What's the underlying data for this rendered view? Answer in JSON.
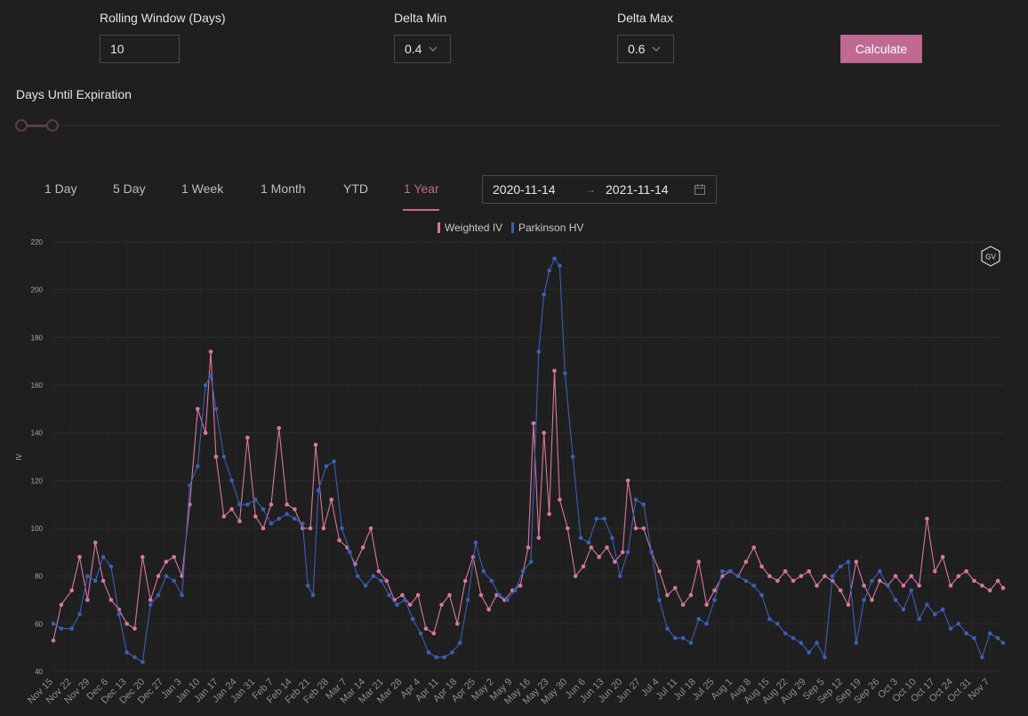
{
  "controls": {
    "rolling_window_label": "Rolling Window (Days)",
    "rolling_window_value": "10",
    "delta_min_label": "Delta Min",
    "delta_min_value": "0.4",
    "delta_max_label": "Delta Max",
    "delta_max_value": "0.6",
    "calculate_label": "Calculate",
    "days_until_expiration_label": "Days Until Expiration"
  },
  "tabs": [
    {
      "label": "1 Day",
      "active": false
    },
    {
      "label": "5 Day",
      "active": false
    },
    {
      "label": "1 Week",
      "active": false
    },
    {
      "label": "1 Month",
      "active": false
    },
    {
      "label": "YTD",
      "active": false
    },
    {
      "label": "1 Year",
      "active": true
    }
  ],
  "date_range": {
    "start": "2020-11-14",
    "end": "2021-11-14"
  },
  "logo_text": "GV",
  "colors": {
    "accent": "#c06a92",
    "weighted_iv": "#d9779f",
    "parkinson_hv": "#3b5fb5",
    "background": "#1f1f1f"
  },
  "chart_data": {
    "type": "line",
    "ylabel": "IV",
    "xlabel": "",
    "ylim": [
      40,
      220
    ],
    "y_ticks": [
      40,
      60,
      80,
      100,
      120,
      140,
      160,
      180,
      200,
      220
    ],
    "grid": true,
    "legend_position": "top-center",
    "x_start": "2020-11-15",
    "x_end": "2021-11-12",
    "x_tick_labels": [
      "Nov 15",
      "Nov 22",
      "Nov 29",
      "Dec 6",
      "Dec 13",
      "Dec 20",
      "Dec 27",
      "Jan 3",
      "Jan 10",
      "Jan 17",
      "Jan 24",
      "Jan 31",
      "Feb 7",
      "Feb 14",
      "Feb 21",
      "Feb 28",
      "Mar 7",
      "Mar 14",
      "Mar 21",
      "Mar 28",
      "Apr 4",
      "Apr 11",
      "Apr 18",
      "Apr 25",
      "May 2",
      "May 9",
      "May 16",
      "May 23",
      "May 30",
      "Jun 6",
      "Jun 13",
      "Jun 20",
      "Jun 27",
      "Jul 4",
      "Jul 11",
      "Jul 18",
      "Jul 25",
      "Aug 1",
      "Aug 8",
      "Aug 15",
      "Aug 22",
      "Aug 29",
      "Sep 5",
      "Sep 12",
      "Sep 19",
      "Sep 26",
      "Oct 3",
      "Oct 10",
      "Oct 17",
      "Oct 24",
      "Oct 31",
      "Nov 7"
    ],
    "series": [
      {
        "name": "Weighted IV",
        "color": "#d9779f",
        "points": [
          [
            "2020-11-15",
            53
          ],
          [
            "2020-11-18",
            68
          ],
          [
            "2020-11-22",
            74
          ],
          [
            "2020-11-25",
            88
          ],
          [
            "2020-11-28",
            70
          ],
          [
            "2020-12-01",
            94
          ],
          [
            "2020-12-04",
            78
          ],
          [
            "2020-12-07",
            70
          ],
          [
            "2020-12-10",
            66
          ],
          [
            "2020-12-13",
            60
          ],
          [
            "2020-12-16",
            58
          ],
          [
            "2020-12-19",
            88
          ],
          [
            "2020-12-22",
            70
          ],
          [
            "2020-12-25",
            80
          ],
          [
            "2020-12-28",
            86
          ],
          [
            "2020-12-31",
            88
          ],
          [
            "2021-01-03",
            80
          ],
          [
            "2021-01-06",
            110
          ],
          [
            "2021-01-09",
            150
          ],
          [
            "2021-01-12",
            140
          ],
          [
            "2021-01-14",
            174
          ],
          [
            "2021-01-16",
            130
          ],
          [
            "2021-01-19",
            105
          ],
          [
            "2021-01-22",
            108
          ],
          [
            "2021-01-25",
            103
          ],
          [
            "2021-01-28",
            138
          ],
          [
            "2021-01-31",
            105
          ],
          [
            "2021-02-03",
            100
          ],
          [
            "2021-02-06",
            110
          ],
          [
            "2021-02-09",
            142
          ],
          [
            "2021-02-12",
            110
          ],
          [
            "2021-02-15",
            108
          ],
          [
            "2021-02-18",
            100
          ],
          [
            "2021-02-21",
            100
          ],
          [
            "2021-02-23",
            135
          ],
          [
            "2021-02-26",
            100
          ],
          [
            "2021-03-01",
            112
          ],
          [
            "2021-03-04",
            95
          ],
          [
            "2021-03-07",
            92
          ],
          [
            "2021-03-10",
            85
          ],
          [
            "2021-03-13",
            92
          ],
          [
            "2021-03-16",
            100
          ],
          [
            "2021-03-19",
            82
          ],
          [
            "2021-03-22",
            78
          ],
          [
            "2021-03-25",
            70
          ],
          [
            "2021-03-28",
            72
          ],
          [
            "2021-03-31",
            68
          ],
          [
            "2021-04-03",
            72
          ],
          [
            "2021-04-06",
            58
          ],
          [
            "2021-04-09",
            56
          ],
          [
            "2021-04-12",
            68
          ],
          [
            "2021-04-15",
            72
          ],
          [
            "2021-04-18",
            60
          ],
          [
            "2021-04-21",
            78
          ],
          [
            "2021-04-24",
            88
          ],
          [
            "2021-04-27",
            72
          ],
          [
            "2021-04-30",
            66
          ],
          [
            "2021-05-03",
            72
          ],
          [
            "2021-05-06",
            70
          ],
          [
            "2021-05-09",
            74
          ],
          [
            "2021-05-12",
            76
          ],
          [
            "2021-05-15",
            92
          ],
          [
            "2021-05-17",
            144
          ],
          [
            "2021-05-19",
            96
          ],
          [
            "2021-05-21",
            140
          ],
          [
            "2021-05-23",
            106
          ],
          [
            "2021-05-25",
            166
          ],
          [
            "2021-05-27",
            112
          ],
          [
            "2021-05-30",
            100
          ],
          [
            "2021-06-02",
            80
          ],
          [
            "2021-06-05",
            84
          ],
          [
            "2021-06-08",
            92
          ],
          [
            "2021-06-11",
            88
          ],
          [
            "2021-06-14",
            92
          ],
          [
            "2021-06-17",
            86
          ],
          [
            "2021-06-20",
            90
          ],
          [
            "2021-06-22",
            120
          ],
          [
            "2021-06-25",
            100
          ],
          [
            "2021-06-28",
            100
          ],
          [
            "2021-07-01",
            90
          ],
          [
            "2021-07-04",
            82
          ],
          [
            "2021-07-07",
            72
          ],
          [
            "2021-07-10",
            75
          ],
          [
            "2021-07-13",
            68
          ],
          [
            "2021-07-16",
            72
          ],
          [
            "2021-07-19",
            86
          ],
          [
            "2021-07-22",
            68
          ],
          [
            "2021-07-25",
            74
          ],
          [
            "2021-07-28",
            80
          ],
          [
            "2021-07-31",
            82
          ],
          [
            "2021-08-03",
            80
          ],
          [
            "2021-08-06",
            86
          ],
          [
            "2021-08-09",
            92
          ],
          [
            "2021-08-12",
            84
          ],
          [
            "2021-08-15",
            80
          ],
          [
            "2021-08-18",
            78
          ],
          [
            "2021-08-21",
            82
          ],
          [
            "2021-08-24",
            78
          ],
          [
            "2021-08-27",
            80
          ],
          [
            "2021-08-30",
            82
          ],
          [
            "2021-09-02",
            76
          ],
          [
            "2021-09-05",
            80
          ],
          [
            "2021-09-08",
            78
          ],
          [
            "2021-09-11",
            74
          ],
          [
            "2021-09-14",
            68
          ],
          [
            "2021-09-17",
            86
          ],
          [
            "2021-09-20",
            76
          ],
          [
            "2021-09-23",
            70
          ],
          [
            "2021-09-26",
            78
          ],
          [
            "2021-09-29",
            76
          ],
          [
            "2021-10-02",
            80
          ],
          [
            "2021-10-05",
            76
          ],
          [
            "2021-10-08",
            80
          ],
          [
            "2021-10-11",
            76
          ],
          [
            "2021-10-14",
            104
          ],
          [
            "2021-10-17",
            82
          ],
          [
            "2021-10-20",
            88
          ],
          [
            "2021-10-23",
            76
          ],
          [
            "2021-10-26",
            80
          ],
          [
            "2021-10-29",
            82
          ],
          [
            "2021-11-01",
            78
          ],
          [
            "2021-11-04",
            76
          ],
          [
            "2021-11-07",
            74
          ],
          [
            "2021-11-10",
            78
          ],
          [
            "2021-11-12",
            75
          ]
        ]
      },
      {
        "name": "Parkinson HV",
        "color": "#3b5fb5",
        "points": [
          [
            "2020-11-15",
            60
          ],
          [
            "2020-11-18",
            58
          ],
          [
            "2020-11-22",
            58
          ],
          [
            "2020-11-25",
            64
          ],
          [
            "2020-11-28",
            80
          ],
          [
            "2020-12-01",
            78
          ],
          [
            "2020-12-04",
            88
          ],
          [
            "2020-12-07",
            84
          ],
          [
            "2020-12-10",
            64
          ],
          [
            "2020-12-13",
            48
          ],
          [
            "2020-12-16",
            46
          ],
          [
            "2020-12-19",
            44
          ],
          [
            "2020-12-22",
            68
          ],
          [
            "2020-12-25",
            72
          ],
          [
            "2020-12-28",
            80
          ],
          [
            "2020-12-31",
            78
          ],
          [
            "2021-01-03",
            72
          ],
          [
            "2021-01-06",
            118
          ],
          [
            "2021-01-09",
            126
          ],
          [
            "2021-01-12",
            160
          ],
          [
            "2021-01-14",
            164
          ],
          [
            "2021-01-16",
            150
          ],
          [
            "2021-01-19",
            130
          ],
          [
            "2021-01-22",
            120
          ],
          [
            "2021-01-25",
            110
          ],
          [
            "2021-01-28",
            110
          ],
          [
            "2021-01-31",
            112
          ],
          [
            "2021-02-03",
            108
          ],
          [
            "2021-02-06",
            102
          ],
          [
            "2021-02-09",
            104
          ],
          [
            "2021-02-12",
            106
          ],
          [
            "2021-02-15",
            104
          ],
          [
            "2021-02-18",
            102
          ],
          [
            "2021-02-20",
            76
          ],
          [
            "2021-02-22",
            72
          ],
          [
            "2021-02-24",
            116
          ],
          [
            "2021-02-27",
            126
          ],
          [
            "2021-03-02",
            128
          ],
          [
            "2021-03-05",
            100
          ],
          [
            "2021-03-08",
            90
          ],
          [
            "2021-03-11",
            80
          ],
          [
            "2021-03-14",
            76
          ],
          [
            "2021-03-17",
            80
          ],
          [
            "2021-03-20",
            78
          ],
          [
            "2021-03-23",
            72
          ],
          [
            "2021-03-26",
            68
          ],
          [
            "2021-03-29",
            70
          ],
          [
            "2021-04-01",
            62
          ],
          [
            "2021-04-04",
            56
          ],
          [
            "2021-04-07",
            48
          ],
          [
            "2021-04-10",
            46
          ],
          [
            "2021-04-13",
            46
          ],
          [
            "2021-04-16",
            48
          ],
          [
            "2021-04-19",
            52
          ],
          [
            "2021-04-22",
            70
          ],
          [
            "2021-04-25",
            94
          ],
          [
            "2021-04-28",
            82
          ],
          [
            "2021-05-01",
            78
          ],
          [
            "2021-05-04",
            72
          ],
          [
            "2021-05-07",
            70
          ],
          [
            "2021-05-10",
            74
          ],
          [
            "2021-05-13",
            82
          ],
          [
            "2021-05-16",
            86
          ],
          [
            "2021-05-19",
            174
          ],
          [
            "2021-05-21",
            198
          ],
          [
            "2021-05-23",
            208
          ],
          [
            "2021-05-25",
            213
          ],
          [
            "2021-05-27",
            210
          ],
          [
            "2021-05-29",
            165
          ],
          [
            "2021-06-01",
            130
          ],
          [
            "2021-06-04",
            96
          ],
          [
            "2021-06-07",
            94
          ],
          [
            "2021-06-10",
            104
          ],
          [
            "2021-06-13",
            104
          ],
          [
            "2021-06-16",
            96
          ],
          [
            "2021-06-19",
            80
          ],
          [
            "2021-06-22",
            90
          ],
          [
            "2021-06-25",
            112
          ],
          [
            "2021-06-28",
            110
          ],
          [
            "2021-07-01",
            90
          ],
          [
            "2021-07-04",
            70
          ],
          [
            "2021-07-07",
            58
          ],
          [
            "2021-07-10",
            54
          ],
          [
            "2021-07-13",
            54
          ],
          [
            "2021-07-16",
            52
          ],
          [
            "2021-07-19",
            62
          ],
          [
            "2021-07-22",
            60
          ],
          [
            "2021-07-25",
            70
          ],
          [
            "2021-07-28",
            82
          ],
          [
            "2021-07-31",
            82
          ],
          [
            "2021-08-03",
            80
          ],
          [
            "2021-08-06",
            78
          ],
          [
            "2021-08-09",
            76
          ],
          [
            "2021-08-12",
            72
          ],
          [
            "2021-08-15",
            62
          ],
          [
            "2021-08-18",
            60
          ],
          [
            "2021-08-21",
            56
          ],
          [
            "2021-08-24",
            54
          ],
          [
            "2021-08-27",
            52
          ],
          [
            "2021-08-30",
            48
          ],
          [
            "2021-09-02",
            52
          ],
          [
            "2021-09-05",
            46
          ],
          [
            "2021-09-08",
            80
          ],
          [
            "2021-09-11",
            84
          ],
          [
            "2021-09-14",
            86
          ],
          [
            "2021-09-17",
            52
          ],
          [
            "2021-09-20",
            70
          ],
          [
            "2021-09-23",
            78
          ],
          [
            "2021-09-26",
            82
          ],
          [
            "2021-09-29",
            76
          ],
          [
            "2021-10-02",
            70
          ],
          [
            "2021-10-05",
            66
          ],
          [
            "2021-10-08",
            74
          ],
          [
            "2021-10-11",
            62
          ],
          [
            "2021-10-14",
            68
          ],
          [
            "2021-10-17",
            64
          ],
          [
            "2021-10-20",
            66
          ],
          [
            "2021-10-23",
            58
          ],
          [
            "2021-10-26",
            60
          ],
          [
            "2021-10-29",
            56
          ],
          [
            "2021-11-01",
            54
          ],
          [
            "2021-11-04",
            46
          ],
          [
            "2021-11-07",
            56
          ],
          [
            "2021-11-10",
            54
          ],
          [
            "2021-11-12",
            52
          ]
        ]
      }
    ]
  }
}
